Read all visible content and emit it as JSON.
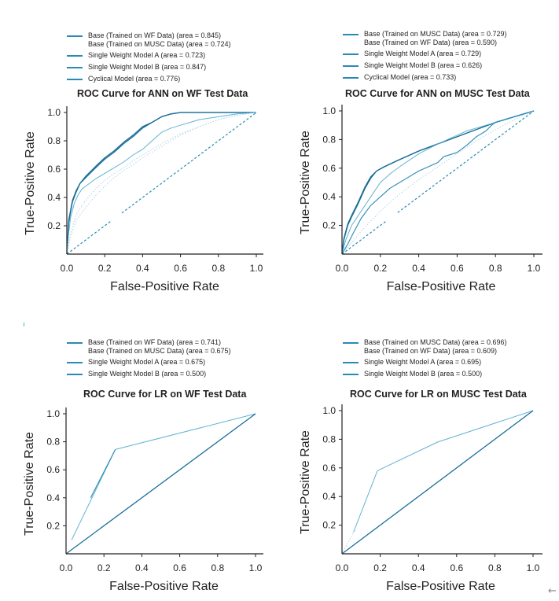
{
  "chart_data": [
    {
      "type": "line",
      "title": "ROC Curve for ANN on WF Test Data",
      "xlabel": "False-Positive Rate",
      "ylabel": "True-Positive Rate",
      "xlim": [
        0,
        1
      ],
      "ylim": [
        0,
        1
      ],
      "x_ticks": [
        "0.0",
        "0.2",
        "0.4",
        "0.6",
        "0.8",
        "1.0"
      ],
      "y_ticks": [
        "0.2",
        "0.4",
        "0.6",
        "0.8",
        "1.0"
      ],
      "grid": false,
      "legend_position": "top-left",
      "legend": [
        {
          "label": "Base (Trained on WF Data) (area = 0.845)",
          "swatch": true
        },
        {
          "label": "Base (Trained on MUSC Data) (area = 0.724)",
          "swatch": false
        },
        {
          "label": "Single Weight Model A (area = 0.723)",
          "swatch": true
        },
        {
          "label": "Single Weight Model B (area = 0.847)",
          "swatch": true
        },
        {
          "label": "Cyclical Model (area = 0.776)",
          "swatch": true
        }
      ],
      "series": [
        {
          "name": "Base (Trained on WF Data)",
          "style": "solid-dark",
          "x": [
            0,
            0.005,
            0.01,
            0.02,
            0.03,
            0.05,
            0.07,
            0.1,
            0.13,
            0.16,
            0.2,
            0.25,
            0.3,
            0.35,
            0.4,
            0.45,
            0.5,
            0.55,
            0.6,
            0.7,
            0.8,
            0.9,
            1.0
          ],
          "y": [
            0,
            0.1,
            0.22,
            0.3,
            0.37,
            0.44,
            0.5,
            0.54,
            0.58,
            0.62,
            0.67,
            0.72,
            0.78,
            0.83,
            0.89,
            0.93,
            0.97,
            0.99,
            1.0,
            1.0,
            1.0,
            1.0,
            1.0
          ]
        },
        {
          "name": "Single Weight Model B",
          "style": "solid-dark",
          "x": [
            0,
            0.005,
            0.01,
            0.02,
            0.03,
            0.05,
            0.07,
            0.1,
            0.13,
            0.16,
            0.2,
            0.25,
            0.3,
            0.35,
            0.4,
            0.45,
            0.5,
            0.55,
            0.6,
            0.7,
            0.8,
            0.9,
            1.0
          ],
          "y": [
            0,
            0.12,
            0.24,
            0.31,
            0.38,
            0.45,
            0.5,
            0.55,
            0.59,
            0.63,
            0.68,
            0.73,
            0.79,
            0.84,
            0.9,
            0.93,
            0.97,
            0.99,
            1.0,
            1.0,
            1.0,
            1.0,
            1.0
          ]
        },
        {
          "name": "Cyclical Model",
          "style": "solid-light",
          "x": [
            0,
            0.01,
            0.02,
            0.04,
            0.06,
            0.08,
            0.1,
            0.15,
            0.2,
            0.25,
            0.3,
            0.35,
            0.4,
            0.45,
            0.5,
            0.55,
            0.6,
            0.65,
            0.7,
            0.8,
            0.9,
            1.0
          ],
          "y": [
            0,
            0.15,
            0.26,
            0.36,
            0.42,
            0.46,
            0.48,
            0.53,
            0.57,
            0.61,
            0.65,
            0.7,
            0.74,
            0.8,
            0.86,
            0.89,
            0.91,
            0.93,
            0.95,
            0.97,
            0.99,
            1.0
          ]
        },
        {
          "name": "Base (Trained on MUSC Data)",
          "style": "dotted-light",
          "x": [
            0,
            0.02,
            0.05,
            0.1,
            0.15,
            0.2,
            0.25,
            0.3,
            0.35,
            0.4,
            0.5,
            0.6,
            0.7,
            0.8,
            0.9,
            1.0
          ],
          "y": [
            0,
            0.15,
            0.28,
            0.38,
            0.46,
            0.52,
            0.57,
            0.61,
            0.66,
            0.7,
            0.78,
            0.85,
            0.9,
            0.95,
            0.98,
            1.0
          ]
        },
        {
          "name": "Single Weight Model A",
          "style": "dotted-light",
          "x": [
            0,
            0.02,
            0.05,
            0.1,
            0.15,
            0.2,
            0.25,
            0.3,
            0.35,
            0.4,
            0.5,
            0.6,
            0.7,
            0.8,
            0.9,
            1.0
          ],
          "y": [
            0,
            0.12,
            0.24,
            0.33,
            0.41,
            0.48,
            0.54,
            0.59,
            0.63,
            0.68,
            0.76,
            0.84,
            0.9,
            0.95,
            0.98,
            1.0
          ]
        },
        {
          "name": "Chance",
          "style": "dashed",
          "x": [
            0,
            1
          ],
          "y": [
            0,
            1
          ],
          "gap": [
            0.23,
            0.29
          ]
        }
      ]
    },
    {
      "type": "line",
      "title": "ROC Curve for ANN on MUSC Test Data",
      "xlabel": "False-Positive Rate",
      "ylabel": "True-Positive Rate",
      "xlim": [
        0,
        1
      ],
      "ylim": [
        0,
        1
      ],
      "x_ticks": [
        "0.0",
        "0.2",
        "0.4",
        "0.6",
        "0.8",
        "1.0"
      ],
      "y_ticks": [
        "0.2",
        "0.4",
        "0.6",
        "0.8",
        "1.0"
      ],
      "grid": false,
      "legend_position": "top-left",
      "legend": [
        {
          "label": "Base (Trained on MUSC Data) (area = 0.729)",
          "swatch": true
        },
        {
          "label": "Base (Trained on WF Data) (area = 0.590)",
          "swatch": false
        },
        {
          "label": "Single Weight Model A (area = 0.729)",
          "swatch": true
        },
        {
          "label": "Single Weight Model B (area = 0.626)",
          "swatch": true
        },
        {
          "label": "Cyclical Model (area = 0.733)",
          "swatch": true
        }
      ],
      "series": [
        {
          "name": "Cyclical Model",
          "style": "solid-dark",
          "x": [
            0,
            0.01,
            0.03,
            0.05,
            0.08,
            0.1,
            0.12,
            0.15,
            0.18,
            0.22,
            0.3,
            0.4,
            0.5,
            0.6,
            0.7,
            0.8,
            0.9,
            1.0
          ],
          "y": [
            0,
            0.1,
            0.2,
            0.26,
            0.34,
            0.4,
            0.46,
            0.53,
            0.58,
            0.61,
            0.66,
            0.72,
            0.77,
            0.82,
            0.87,
            0.92,
            0.96,
            1.0
          ]
        },
        {
          "name": "Base (Trained on MUSC Data)",
          "style": "solid-dark",
          "x": [
            0,
            0.01,
            0.03,
            0.05,
            0.08,
            0.1,
            0.12,
            0.15,
            0.18,
            0.22,
            0.3,
            0.4,
            0.5,
            0.6,
            0.7,
            0.8,
            0.9,
            1.0
          ],
          "y": [
            0,
            0.11,
            0.21,
            0.27,
            0.35,
            0.41,
            0.47,
            0.54,
            0.58,
            0.61,
            0.66,
            0.72,
            0.77,
            0.82,
            0.87,
            0.92,
            0.96,
            1.0
          ]
        },
        {
          "name": "Single Weight Model A",
          "style": "solid-light",
          "x": [
            0,
            0.02,
            0.05,
            0.1,
            0.15,
            0.2,
            0.25,
            0.3,
            0.4,
            0.5,
            0.6,
            0.65,
            0.7,
            0.8,
            0.9,
            1.0
          ],
          "y": [
            0,
            0.1,
            0.2,
            0.3,
            0.4,
            0.5,
            0.56,
            0.61,
            0.7,
            0.77,
            0.83,
            0.86,
            0.88,
            0.92,
            0.96,
            1.0
          ]
        },
        {
          "name": "Single Weight Model B",
          "style": "solid-mid",
          "x": [
            0,
            0.03,
            0.06,
            0.1,
            0.15,
            0.2,
            0.25,
            0.3,
            0.35,
            0.4,
            0.45,
            0.5,
            0.53,
            0.6,
            0.65,
            0.7,
            0.75,
            0.78,
            0.8,
            0.9,
            1.0
          ],
          "y": [
            0,
            0.07,
            0.15,
            0.25,
            0.34,
            0.4,
            0.46,
            0.5,
            0.54,
            0.58,
            0.61,
            0.64,
            0.68,
            0.71,
            0.76,
            0.82,
            0.86,
            0.9,
            0.92,
            0.96,
            1.0
          ]
        },
        {
          "name": "Base (Trained on WF Data)",
          "style": "dotted-light",
          "x": [
            0,
            0.05,
            0.1,
            0.2,
            0.3,
            0.4,
            0.5,
            0.6,
            0.7,
            0.8,
            0.9,
            1.0
          ],
          "y": [
            0,
            0.08,
            0.16,
            0.3,
            0.42,
            0.52,
            0.61,
            0.7,
            0.79,
            0.87,
            0.94,
            1.0
          ]
        },
        {
          "name": "Chance",
          "style": "dashed",
          "x": [
            0,
            1
          ],
          "y": [
            0,
            1
          ],
          "gap": [
            0.23,
            0.29
          ]
        }
      ]
    },
    {
      "type": "line",
      "title": "ROC Curve for LR on WF Test Data",
      "xlabel": "False-Positive Rate",
      "ylabel": "True-Positive Rate",
      "xlim": [
        0,
        1
      ],
      "ylim": [
        0,
        1
      ],
      "x_ticks": [
        "0.0",
        "0.2",
        "0.4",
        "0.6",
        "0.8",
        "1.0"
      ],
      "y_ticks": [
        "0.2",
        "0.4",
        "0.6",
        "0.8",
        "1.0"
      ],
      "grid": false,
      "legend_position": "top-left",
      "legend": [
        {
          "label": "Base (Trained on WF Data) (area = 0.741)",
          "swatch": true
        },
        {
          "label": "Base (Trained on MUSC Data) (area = 0.675)",
          "swatch": false
        },
        {
          "label": "Single Weight Model A (area = 0.675)",
          "swatch": true
        },
        {
          "label": "Single Weight Model B (area = 0.500)",
          "swatch": true
        }
      ],
      "series": [
        {
          "name": "Base (Trained on WF Data)",
          "style": "solid-light",
          "x": [
            0.03,
            0.26,
            1.0
          ],
          "y": [
            0.1,
            0.745,
            1.0
          ]
        },
        {
          "name": "Single Weight Model A",
          "style": "solid-mid",
          "x": [
            0.13,
            0.26
          ],
          "y": [
            0.4,
            0.745
          ]
        },
        {
          "name": "Single Weight Model B",
          "style": "solid-dark",
          "x": [
            0,
            1
          ],
          "y": [
            0,
            1
          ]
        }
      ]
    },
    {
      "type": "line",
      "title": "ROC Curve for LR on MUSC Test Data",
      "xlabel": "False-Positive Rate",
      "ylabel": "True-Positive Rate",
      "xlim": [
        0,
        1
      ],
      "ylim": [
        0,
        1
      ],
      "x_ticks": [
        "0.0",
        "0.2",
        "0.4",
        "0.6",
        "0.8",
        "1.0"
      ],
      "y_ticks": [
        "0.2",
        "0.4",
        "0.6",
        "0.8",
        "1.0"
      ],
      "grid": false,
      "legend_position": "top-left",
      "legend": [
        {
          "label": "Base (Trained on MUSC Data) (area = 0.696)",
          "swatch": true
        },
        {
          "label": "Base (Trained on WF Data) (area = 0.609)",
          "swatch": false
        },
        {
          "label": "Single Weight Model A (area = 0.695)",
          "swatch": true
        },
        {
          "label": "Single Weight Model B (area = 0.500)",
          "swatch": true
        }
      ],
      "series": [
        {
          "name": "Single Weight Model A",
          "style": "solid-light",
          "x": [
            0.06,
            0.185,
            0.5,
            1.0
          ],
          "y": [
            0.15,
            0.58,
            0.78,
            1.0
          ]
        },
        {
          "name": "Base (Trained on WF Data)",
          "style": "dotted-light",
          "x": [
            0.0,
            0.06
          ],
          "y": [
            0.0,
            0.15
          ]
        },
        {
          "name": "Single Weight Model B",
          "style": "solid-dark",
          "x": [
            0,
            1
          ],
          "y": [
            0,
            1
          ]
        }
      ]
    }
  ],
  "colors": {
    "dark": "#1a6e99",
    "mid": "#2a8ab5",
    "light": "#5aaed0",
    "faint": "#a9d3e6",
    "axis": "#231f20"
  },
  "page": {
    "back_arrow": "←"
  }
}
